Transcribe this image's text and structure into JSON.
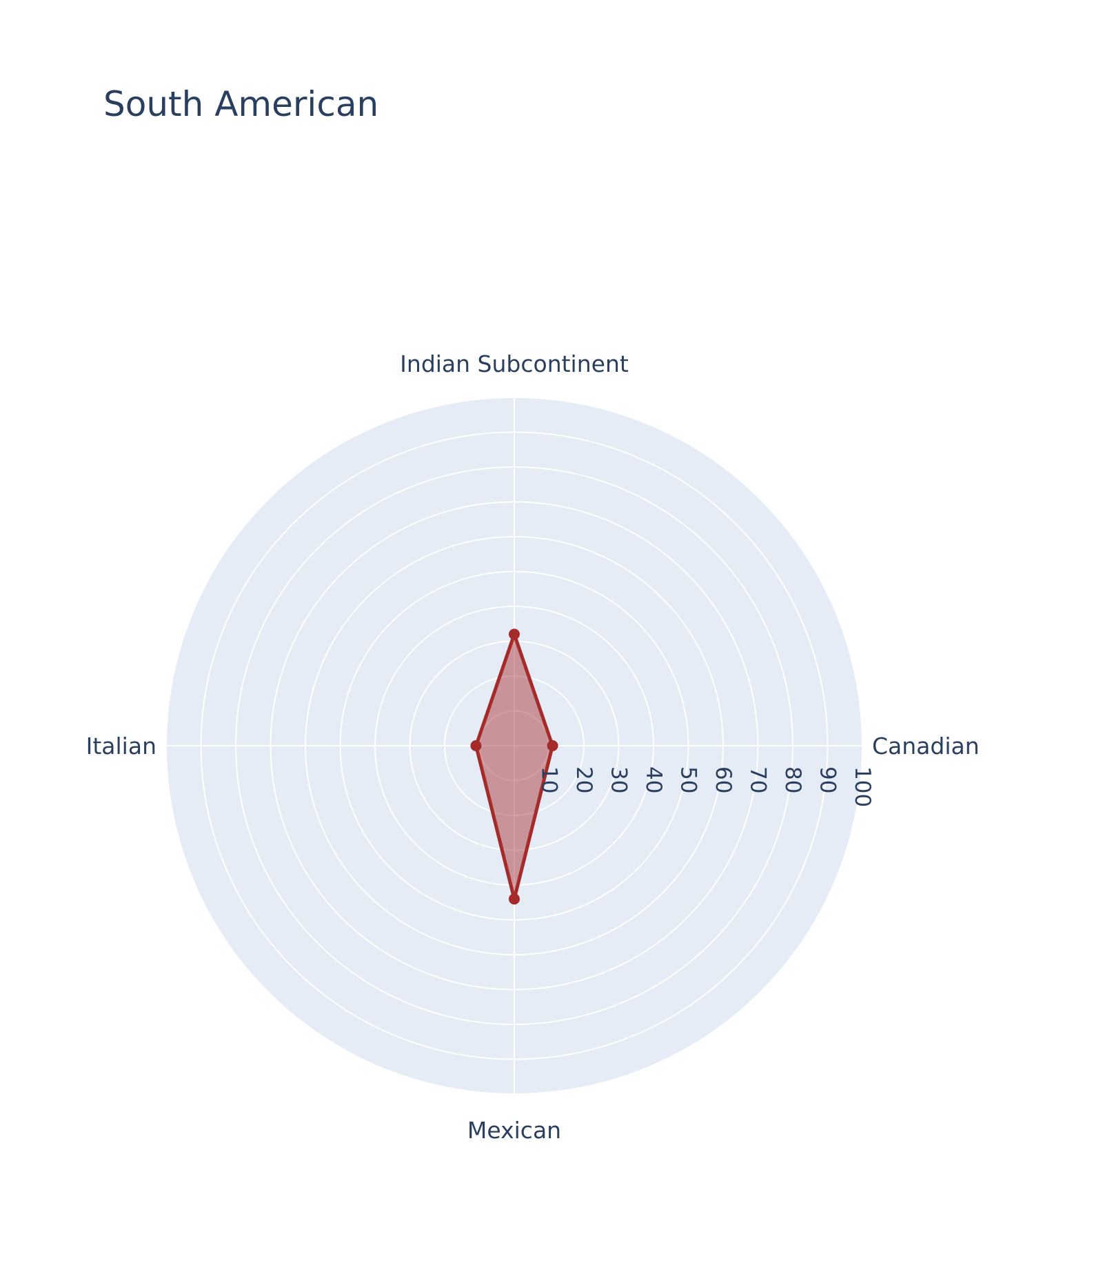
{
  "chart_data": {
    "type": "radar",
    "title": "South American",
    "categories": [
      "Indian Subcontinent",
      "Canadian",
      "Mexican",
      "Italian"
    ],
    "series": [
      {
        "values": [
          32,
          11,
          44,
          11
        ]
      }
    ],
    "radial_range": [
      0,
      100
    ],
    "radial_ticks": [
      10,
      20,
      30,
      40,
      50,
      60,
      70,
      80,
      90,
      100
    ],
    "grid": true,
    "colors": {
      "polar_background": "#e5ecf6",
      "grid": "#ffffff",
      "series_line": "#a52a2a",
      "series_fill": "rgba(165,42,42,0.45)",
      "text": "#2a3f5f"
    }
  }
}
